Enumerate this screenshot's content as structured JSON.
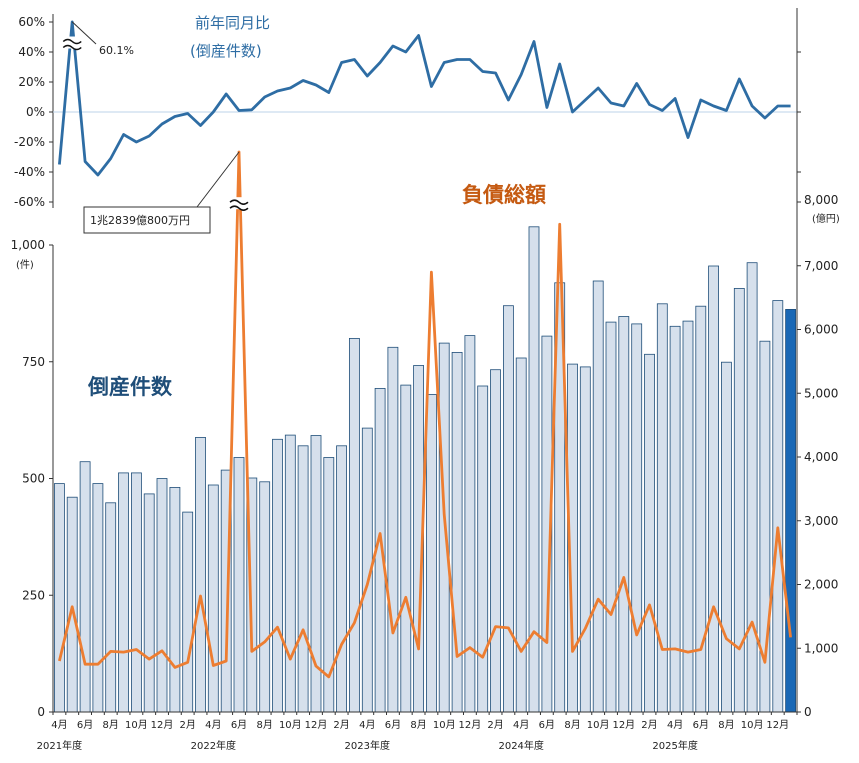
{
  "chart_data": [
    {
      "type": "bar",
      "title": "倒産件数",
      "ylabel": "(件)",
      "ylim": [
        0,
        1000
      ],
      "yticks": [
        "0",
        "250",
        "500",
        "750",
        "1,000"
      ],
      "x": [
        "2021-04",
        "2021-05",
        "2021-06",
        "2021-07",
        "2021-08",
        "2021-09",
        "2021-10",
        "2021-11",
        "2021-12",
        "2022-01",
        "2022-02",
        "2022-03",
        "2022-04",
        "2022-05",
        "2022-06",
        "2022-07",
        "2022-08",
        "2022-09",
        "2022-10",
        "2022-11",
        "2022-12",
        "2023-01",
        "2023-02",
        "2023-03",
        "2023-04",
        "2023-05",
        "2023-06",
        "2023-07",
        "2023-08",
        "2023-09",
        "2023-10",
        "2023-11",
        "2023-12",
        "2024-01",
        "2024-02",
        "2024-03",
        "2024-04",
        "2024-05",
        "2024-06",
        "2024-07",
        "2024-08",
        "2024-09",
        "2024-10",
        "2024-11",
        "2024-12",
        "2025-01",
        "2025-02",
        "2025-03",
        "2025-04",
        "2025-05",
        "2025-06",
        "2025-07",
        "2025-08",
        "2025-09",
        "2025-10",
        "2025-11",
        "2025-12",
        "2026-01"
      ],
      "values": [
        489,
        460,
        536,
        489,
        448,
        512,
        512,
        467,
        500,
        481,
        428,
        588,
        486,
        518,
        545,
        501,
        493,
        584,
        593,
        570,
        592,
        545,
        570,
        800,
        608,
        693,
        781,
        700,
        742,
        680,
        790,
        770,
        806,
        698,
        733,
        870,
        758,
        1039,
        805,
        919,
        745,
        739,
        923,
        835,
        847,
        831,
        766,
        874,
        826,
        837,
        869,
        955,
        749,
        907,
        962,
        794,
        881,
        862
      ],
      "highlight_last": true,
      "bar_color": "#d6e0ec",
      "bar_edge": "#1f4e79",
      "highlight_color": "#1a68b5"
    },
    {
      "type": "line",
      "title": "負債総額",
      "ylabel": "(億円)",
      "ylim": [
        0,
        8000
      ],
      "yticks": [
        "0",
        "1,000",
        "2,000",
        "3,000",
        "4,000",
        "5,000",
        "6,000",
        "7,000",
        "8,000"
      ],
      "values": [
        800,
        1650,
        750,
        750,
        950,
        940,
        980,
        830,
        960,
        700,
        780,
        1820,
        730,
        800,
        12839,
        950,
        1100,
        1330,
        830,
        1290,
        720,
        550,
        1060,
        1400,
        2000,
        2800,
        1240,
        1800,
        990,
        6900,
        3100,
        870,
        1010,
        860,
        1340,
        1320,
        950,
        1260,
        1090,
        7650,
        950,
        1310,
        1770,
        1530,
        2110,
        1210,
        1680,
        980,
        990,
        940,
        980,
        1650,
        1150,
        990,
        1410,
        780,
        2890,
        1170
      ],
      "line_color": "#ed7d31",
      "break_annotation": "1兆2839億800万円",
      "axis_cap": 8000
    },
    {
      "type": "line",
      "title": "前年同月比",
      "subtitle": "(倒産件数)",
      "ylim": [
        -60,
        60
      ],
      "yticks": [
        "-60%",
        "-40%",
        "-20%",
        "0%",
        "20%",
        "40%",
        "60%"
      ],
      "values": [
        -35,
        60.1,
        -33,
        -42,
        -31,
        -15,
        -20,
        -16,
        -8,
        -3,
        -1,
        -9,
        0,
        12,
        1,
        1.5,
        10,
        14,
        16,
        21,
        18,
        13,
        33,
        35,
        24,
        33,
        44,
        40,
        51,
        17,
        33,
        35,
        35,
        27,
        26,
        8,
        25,
        47,
        3,
        32,
        0,
        8,
        16,
        6,
        4,
        19,
        5,
        1,
        9,
        -17,
        8,
        4,
        1,
        22,
        4,
        -4,
        4,
        4
      ],
      "line_color": "#2e6da4",
      "peak_label": "60.1%"
    }
  ],
  "x_month_labels": [
    "4月",
    "6月",
    "8月",
    "10月",
    "12月",
    "2月",
    "4月",
    "6月",
    "8月",
    "10月",
    "12月",
    "2月",
    "4月",
    "6月",
    "8月",
    "10月",
    "12月",
    "2月",
    "4月",
    "6月",
    "8月",
    "10月",
    "12月",
    "2月",
    "4月",
    "6月",
    "8月",
    "10月",
    "12月"
  ],
  "fiscal_year_labels": [
    "2021年度",
    "2022年度",
    "2023年度",
    "2024年度",
    "2025年度"
  ],
  "labels": {
    "count_label": "倒産件数",
    "debt_label": "負債総額",
    "yoy_title": "前年同月比",
    "yoy_subtitle": "(倒産件数)",
    "left_unit": "(件)",
    "right_unit": "(億円)",
    "peak_label": "60.1%",
    "debt_callout": "1兆2839億800万円"
  }
}
